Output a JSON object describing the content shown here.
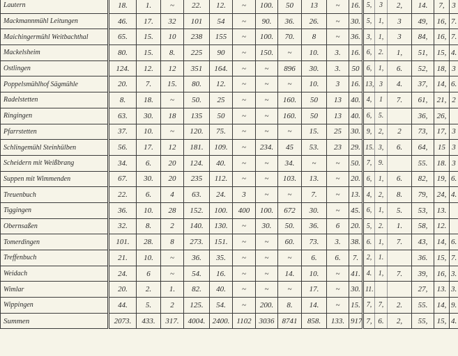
{
  "table": {
    "rows": [
      [
        "Lautern",
        "18.",
        "1.",
        "~",
        "22.",
        "12.",
        "~",
        "100.",
        "50",
        "13",
        "~",
        "16.",
        "5,",
        "3",
        "2,",
        "14.",
        "7,",
        "3"
      ],
      [
        "Mackmannmühl Leitungen",
        "46.",
        "17.",
        "32",
        "101",
        "54",
        "~",
        "90.",
        "36.",
        "26.",
        "~",
        "30.",
        "5,",
        "1,",
        "3",
        "49,",
        "16,",
        "7."
      ],
      [
        "Maichingermühl Weitbachthal",
        "65.",
        "15.",
        "10",
        "238",
        "155",
        "~",
        "100.",
        "70.",
        "8",
        "~",
        "36.",
        "3,",
        "1,",
        "3",
        "84,",
        "16,",
        "7."
      ],
      [
        "Mackelsheim",
        "80.",
        "15.",
        "8.",
        "225",
        "90",
        "~",
        "150.",
        "~",
        "10.",
        "3.",
        "16.",
        "6,",
        "2.",
        "1,",
        "51,",
        "15,",
        "4."
      ],
      [
        "Ostlingen",
        "124.",
        "12.",
        "12",
        "351",
        "164.",
        "~",
        "~",
        "896",
        "30.",
        "3.",
        "50",
        "6,",
        "1,",
        "6.",
        "52,",
        "18,",
        "3"
      ],
      [
        "Poppelsmühlhof Sägmühle",
        "20.",
        "7.",
        "15.",
        "80.",
        "12.",
        "~",
        "~",
        "~",
        "10.",
        "3",
        "16.",
        "13,",
        "3",
        "4.",
        "37,",
        "14,",
        "6."
      ],
      [
        "Radelstetten",
        "8.",
        "18.",
        "~",
        "50.",
        "25",
        "~",
        "~",
        "160.",
        "50",
        "13",
        "40.",
        "4,",
        "1",
        "7.",
        "61,",
        "21,",
        "2"
      ],
      [
        "Ringingen",
        "63.",
        "30.",
        "18",
        "135",
        "50",
        "~",
        "~",
        "160.",
        "50",
        "13",
        "40.",
        "6,",
        "5.",
        "",
        "36,",
        "26,",
        ""
      ],
      [
        "Pfarrstetten",
        "37.",
        "10.",
        "~",
        "120.",
        "75.",
        "~",
        "~",
        "~",
        "15.",
        "25",
        "30.",
        "9,",
        "2,",
        "2",
        "73,",
        "17,",
        "3"
      ],
      [
        "Schlingemühl Steinhülben",
        "56.",
        "17.",
        "12",
        "181.",
        "109.",
        "~",
        "234.",
        "45",
        "53.",
        "23",
        "29.",
        "15.",
        "3,",
        "6.",
        "64,",
        "15",
        "3"
      ],
      [
        "Scheidern mit Weißbrang",
        "34.",
        "6.",
        "20",
        "124.",
        "40.",
        "~",
        "~",
        "34.",
        "~",
        "~",
        "50.",
        "7,",
        "9.",
        "",
        "55.",
        "18.",
        "3"
      ],
      [
        "Suppen mit Wimmenden",
        "67.",
        "30.",
        "20",
        "235",
        "112.",
        "~",
        "~",
        "103.",
        "13.",
        "~",
        "20.",
        "6,",
        "1,",
        "6.",
        "82,",
        "19,",
        "6."
      ],
      [
        "Treuenbuch",
        "22.",
        "6.",
        "4",
        "63.",
        "24.",
        "3",
        "~",
        "~",
        "7.",
        "~",
        "13.",
        "4,",
        "2,",
        "8.",
        "79,",
        "24,",
        "4."
      ],
      [
        "Tiggingen",
        "36.",
        "10.",
        "28",
        "152.",
        "100.",
        "400",
        "100.",
        "672",
        "30.",
        "~",
        "45.",
        "6,",
        "1,",
        "5.",
        "53,",
        "13.",
        ""
      ],
      [
        "Obernsaßen",
        "32.",
        "8.",
        "2",
        "140.",
        "130.",
        "~",
        "30.",
        "50.",
        "36.",
        "6",
        "20.",
        "5,",
        "2.",
        "1.",
        "58,",
        "12.",
        ""
      ],
      [
        "Tomerdingen",
        "101.",
        "28.",
        "8",
        "273.",
        "151.",
        "~",
        "~",
        "60.",
        "73.",
        "3.",
        "38.",
        "6.",
        "1,",
        "7.",
        "43,",
        "14,",
        "6."
      ],
      [
        "Treffenbuch",
        "21.",
        "10.",
        "~",
        "36.",
        "35.",
        "~",
        "~",
        "~",
        "6.",
        "6.",
        "7.",
        "2,",
        "1.",
        "",
        "36.",
        "15,",
        "7."
      ],
      [
        "Weidach",
        "24.",
        "6",
        "~",
        "54.",
        "16.",
        "~",
        "~",
        "14.",
        "10.",
        "~",
        "41.",
        "4.",
        "1,",
        "7.",
        "39,",
        "16,",
        "3."
      ],
      [
        "Wimlar",
        "20.",
        "2.",
        "1.",
        "82.",
        "40.",
        "~",
        "~",
        "~",
        "17.",
        "~",
        "30.",
        "11.",
        "",
        "",
        "27,",
        "13.",
        "3."
      ],
      [
        "Wippingen",
        "44.",
        "5.",
        "2",
        "125.",
        "54.",
        "~",
        "200.",
        "8.",
        "14.",
        "~",
        "15.",
        "7,",
        "7,",
        "2.",
        "55.",
        "14,",
        "9."
      ],
      [
        "Summen",
        "2073.",
        "433.",
        "317.",
        "4004.",
        "2400.",
        "1102",
        "3036",
        "8741",
        "858.",
        "133.",
        "917.",
        "7,",
        "6.",
        "2,",
        "55,",
        "15,",
        "4."
      ]
    ]
  }
}
